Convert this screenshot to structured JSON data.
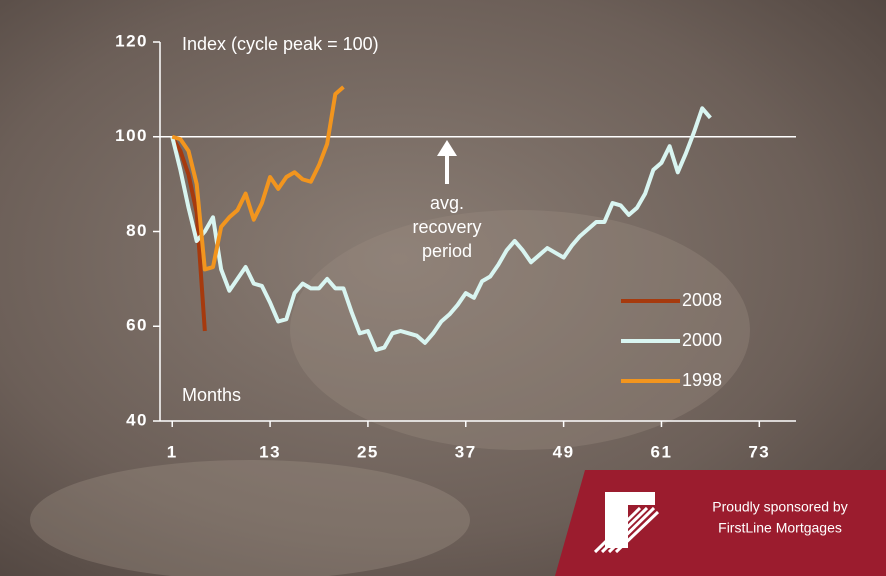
{
  "chart_data": {
    "type": "line",
    "y_label": "Index (cycle peak = 100)",
    "x_label": "Months",
    "annotation": [
      "avg.",
      "recovery",
      "period"
    ],
    "ref_line": 100,
    "xlim": [
      -0.5,
      77.5
    ],
    "xticks": [
      1,
      13,
      25,
      37,
      49,
      61,
      73
    ],
    "ylim": [
      40,
      120
    ],
    "yticks": [
      40,
      60,
      80,
      100,
      120
    ],
    "series": [
      {
        "name": "2008",
        "color": "#a63a0e",
        "x": [
          1,
          2,
          3,
          4,
          5
        ],
        "values": [
          100,
          97,
          92,
          84,
          59
        ]
      },
      {
        "name": "2000",
        "color": "#d9f5f1",
        "x": [
          1,
          2,
          3,
          4,
          5,
          6,
          7,
          8,
          9,
          10,
          11,
          12,
          13,
          14,
          15,
          16,
          17,
          18,
          19,
          20,
          21,
          22,
          23,
          24,
          25,
          26,
          27,
          28,
          29,
          30,
          31,
          32,
          33,
          34,
          35,
          36,
          37,
          38,
          39,
          40,
          41,
          42,
          43,
          44,
          45,
          46,
          47,
          48,
          49,
          50,
          51,
          52,
          53,
          54,
          55,
          56,
          57,
          58,
          59,
          60,
          61,
          62,
          63,
          64,
          65,
          66,
          67
        ],
        "values": [
          100,
          93,
          85,
          78,
          80,
          83,
          72,
          67.5,
          70,
          72.5,
          69,
          68.5,
          65,
          61,
          61.5,
          67,
          69,
          68,
          68,
          70,
          68,
          68,
          63,
          58.5,
          59,
          55,
          55.5,
          58.5,
          59,
          58.5,
          58,
          56.5,
          58.5,
          61,
          62.5,
          64.5,
          67,
          66,
          69.5,
          70.5,
          73,
          76,
          78,
          76,
          73.5,
          75,
          76.5,
          75.5,
          74.5,
          77,
          79,
          80.5,
          82,
          82,
          86,
          85.5,
          83.5,
          85,
          88,
          93,
          94.5,
          98,
          92.5,
          96.5,
          101,
          106,
          104
        ]
      },
      {
        "name": "1998",
        "color": "#f2951e",
        "x": [
          1,
          2,
          3,
          4,
          5,
          6,
          7,
          8,
          9,
          10,
          11,
          12,
          13,
          14,
          15,
          16,
          17,
          18,
          19,
          20,
          21,
          22
        ],
        "values": [
          100,
          99.5,
          97,
          90,
          72,
          72.5,
          81,
          83,
          84.5,
          88,
          82.5,
          86,
          91.5,
          89,
          91.5,
          92.5,
          91,
          90.5,
          94,
          98.5,
          109,
          110.5
        ]
      }
    ]
  },
  "sponsor": {
    "line1": "Proudly sponsored by",
    "line2": "FirstLine Mortgages"
  }
}
